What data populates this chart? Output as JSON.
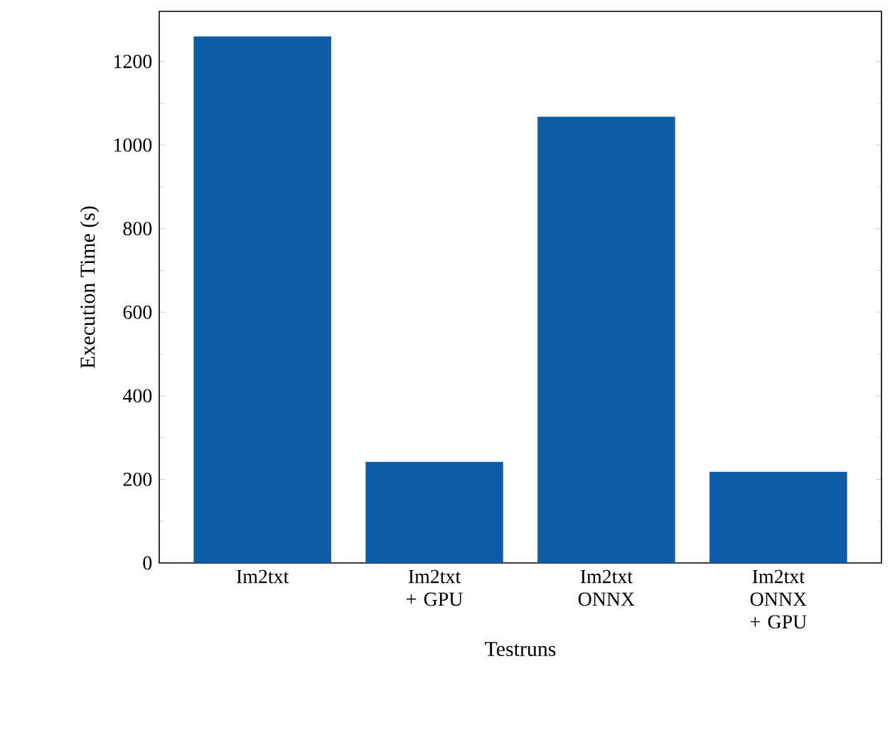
{
  "chart_data": {
    "type": "bar",
    "xlabel": "Testruns",
    "ylabel": "Execution Time (s)",
    "categories": [
      "Im2txt",
      "Im2txt + GPU",
      "Im2txt ONNX",
      "Im2txt ONNX + GPU"
    ],
    "values": [
      1260,
      242,
      1068,
      218
    ],
    "color": "#0c5da5",
    "ylim": [
      0,
      1320
    ],
    "yticks": [
      0,
      200,
      400,
      600,
      800,
      1000,
      1200
    ],
    "grid": false
  }
}
